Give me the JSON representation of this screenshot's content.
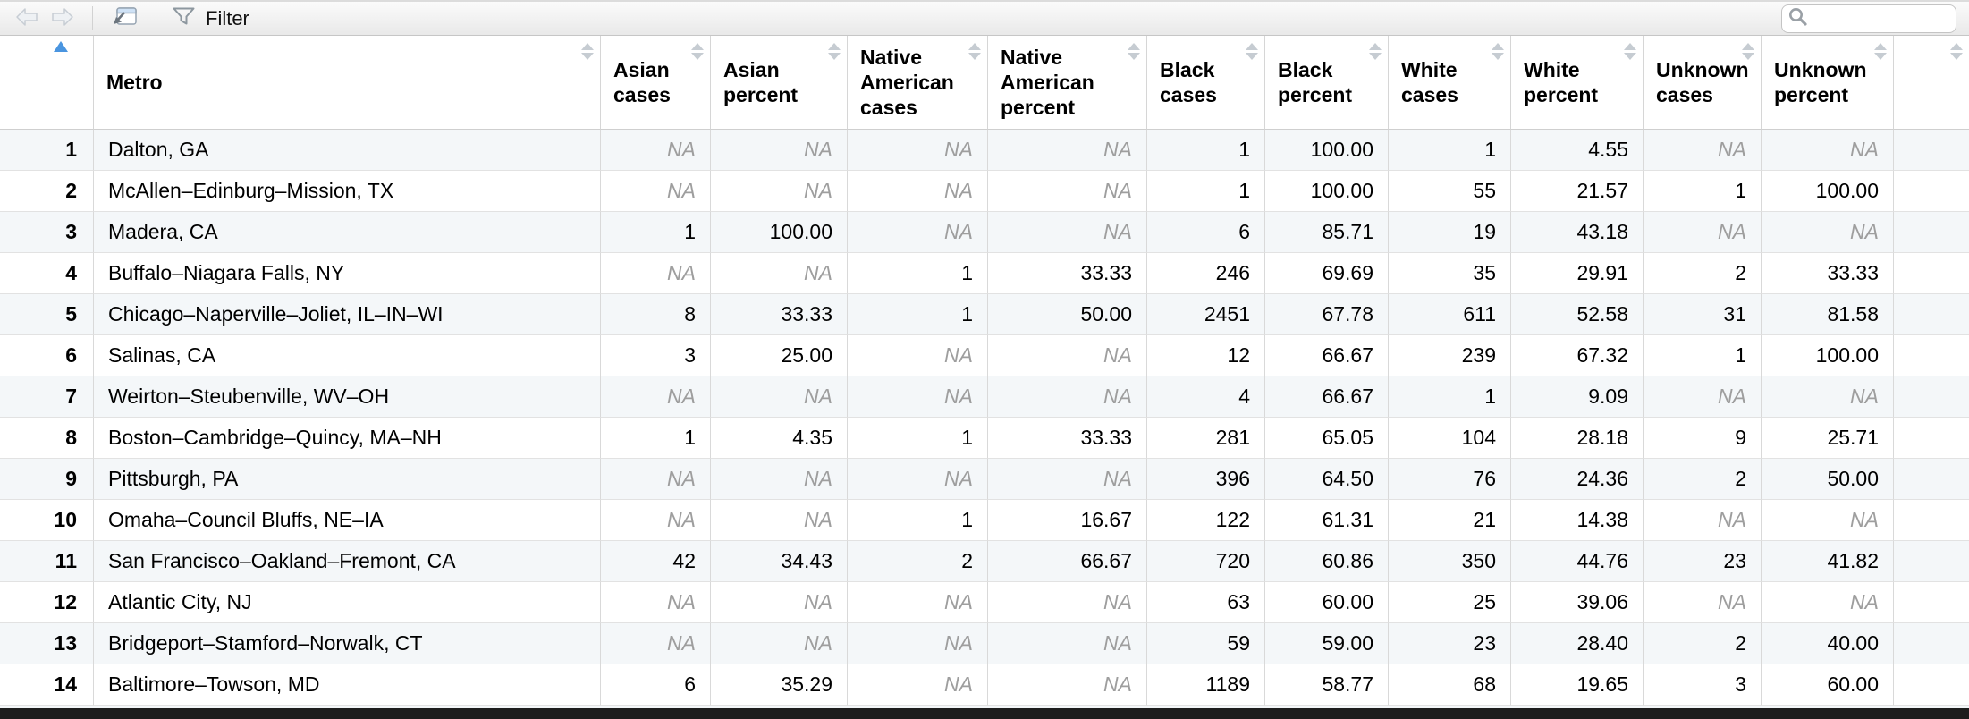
{
  "toolbar": {
    "filter_label": "Filter",
    "search_value": ""
  },
  "colors": {
    "sorted_arrow_blue": "#4a95e0",
    "na_text_gray": "#9e9e9e",
    "row_stripe": "#f4f7f9"
  },
  "table": {
    "na_text": "NA",
    "columns": [
      {
        "id": "rownum",
        "label": "",
        "sort": "asc"
      },
      {
        "id": "metro",
        "label": "Metro",
        "sort": "none"
      },
      {
        "id": "asian-cases",
        "label": "Asian cases",
        "sort": "none"
      },
      {
        "id": "asian-percent",
        "label": "Asian percent",
        "sort": "none"
      },
      {
        "id": "native-american-cases",
        "label": "Native American cases",
        "sort": "none"
      },
      {
        "id": "native-american-percent",
        "label": "Native American percent",
        "sort": "none"
      },
      {
        "id": "black-cases",
        "label": "Black cases",
        "sort": "none"
      },
      {
        "id": "black-percent",
        "label": "Black percent",
        "sort": "none"
      },
      {
        "id": "white-cases",
        "label": "White cases",
        "sort": "none"
      },
      {
        "id": "white-percent",
        "label": "White percent",
        "sort": "none"
      },
      {
        "id": "unknown-cases",
        "label": "Unknown cases",
        "sort": "none"
      },
      {
        "id": "unknown-percent",
        "label": "Unknown percent",
        "sort": "none"
      },
      {
        "id": "filler",
        "label": "",
        "sort": "none"
      }
    ],
    "rows": [
      {
        "num": "1",
        "metro": "Dalton, GA",
        "values": [
          "NA",
          "NA",
          "NA",
          "NA",
          "1",
          "100.00",
          "1",
          "4.55",
          "NA",
          "NA"
        ]
      },
      {
        "num": "2",
        "metro": "McAllen–Edinburg–Mission, TX",
        "values": [
          "NA",
          "NA",
          "NA",
          "NA",
          "1",
          "100.00",
          "55",
          "21.57",
          "1",
          "100.00"
        ]
      },
      {
        "num": "3",
        "metro": "Madera, CA",
        "values": [
          "1",
          "100.00",
          "NA",
          "NA",
          "6",
          "85.71",
          "19",
          "43.18",
          "NA",
          "NA"
        ]
      },
      {
        "num": "4",
        "metro": "Buffalo–Niagara Falls, NY",
        "values": [
          "NA",
          "NA",
          "1",
          "33.33",
          "246",
          "69.69",
          "35",
          "29.91",
          "2",
          "33.33"
        ]
      },
      {
        "num": "5",
        "metro": "Chicago–Naperville–Joliet, IL–IN–WI",
        "values": [
          "8",
          "33.33",
          "1",
          "50.00",
          "2451",
          "67.78",
          "611",
          "52.58",
          "31",
          "81.58"
        ]
      },
      {
        "num": "6",
        "metro": "Salinas, CA",
        "values": [
          "3",
          "25.00",
          "NA",
          "NA",
          "12",
          "66.67",
          "239",
          "67.32",
          "1",
          "100.00"
        ]
      },
      {
        "num": "7",
        "metro": "Weirton–Steubenville, WV–OH",
        "values": [
          "NA",
          "NA",
          "NA",
          "NA",
          "4",
          "66.67",
          "1",
          "9.09",
          "NA",
          "NA"
        ]
      },
      {
        "num": "8",
        "metro": "Boston–Cambridge–Quincy, MA–NH",
        "values": [
          "1",
          "4.35",
          "1",
          "33.33",
          "281",
          "65.05",
          "104",
          "28.18",
          "9",
          "25.71"
        ]
      },
      {
        "num": "9",
        "metro": "Pittsburgh, PA",
        "values": [
          "NA",
          "NA",
          "NA",
          "NA",
          "396",
          "64.50",
          "76",
          "24.36",
          "2",
          "50.00"
        ]
      },
      {
        "num": "10",
        "metro": "Omaha–Council Bluffs, NE–IA",
        "values": [
          "NA",
          "NA",
          "1",
          "16.67",
          "122",
          "61.31",
          "21",
          "14.38",
          "NA",
          "NA"
        ]
      },
      {
        "num": "11",
        "metro": "San Francisco–Oakland–Fremont, CA",
        "values": [
          "42",
          "34.43",
          "2",
          "66.67",
          "720",
          "60.86",
          "350",
          "44.76",
          "23",
          "41.82"
        ]
      },
      {
        "num": "12",
        "metro": "Atlantic City, NJ",
        "values": [
          "NA",
          "NA",
          "NA",
          "NA",
          "63",
          "60.00",
          "25",
          "39.06",
          "NA",
          "NA"
        ]
      },
      {
        "num": "13",
        "metro": "Bridgeport–Stamford–Norwalk, CT",
        "values": [
          "NA",
          "NA",
          "NA",
          "NA",
          "59",
          "59.00",
          "23",
          "28.40",
          "2",
          "40.00"
        ]
      },
      {
        "num": "14",
        "metro": "Baltimore–Towson, MD",
        "values": [
          "6",
          "35.29",
          "NA",
          "NA",
          "1189",
          "58.77",
          "68",
          "19.65",
          "3",
          "60.00"
        ]
      }
    ]
  }
}
